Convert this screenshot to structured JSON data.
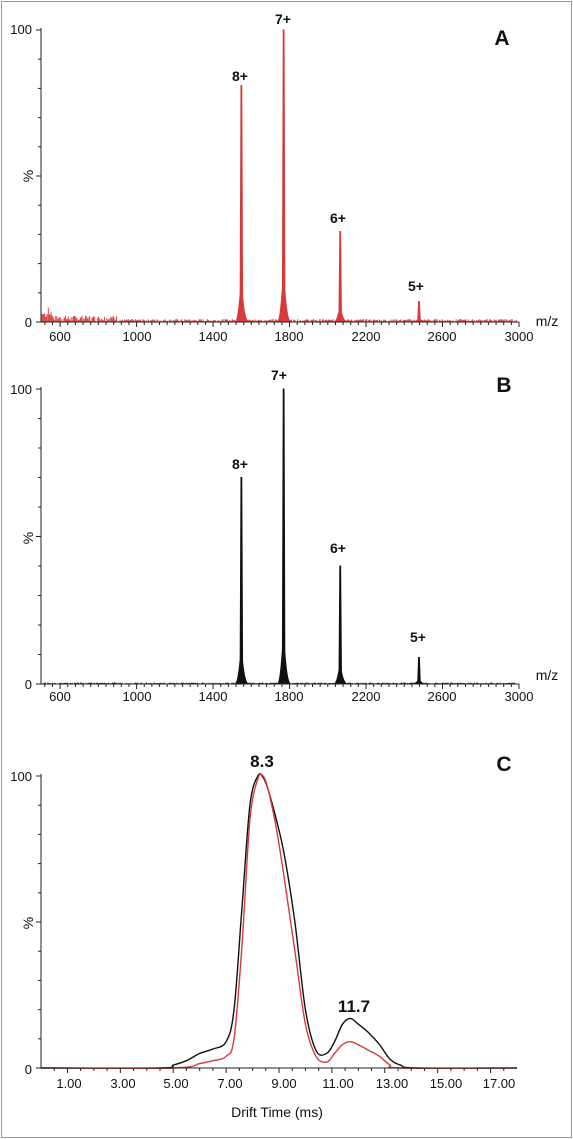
{
  "chart_data": [
    {
      "panel": "A",
      "type": "line",
      "color": "#d63a3a",
      "xlabel": "m/z",
      "ylabel": "%",
      "xlim": [
        500,
        3000
      ],
      "ylim": [
        0,
        100
      ],
      "x_ticks": [
        "600",
        "1000",
        "1400",
        "1800",
        "2200",
        "2600",
        "3000"
      ],
      "y_ticks": [
        "0",
        "100"
      ],
      "peaks": [
        {
          "x": 1548,
          "y": 81,
          "label": "8+"
        },
        {
          "x": 1769,
          "y": 100,
          "label": "7+"
        },
        {
          "x": 2065,
          "y": 31,
          "label": "6+"
        },
        {
          "x": 2477,
          "y": 7,
          "label": "5+"
        }
      ]
    },
    {
      "panel": "B",
      "type": "line",
      "color": "#111111",
      "xlabel": "m/z",
      "ylabel": "%",
      "xlim": [
        500,
        3000
      ],
      "ylim": [
        0,
        100
      ],
      "x_ticks": [
        "600",
        "1000",
        "1400",
        "1800",
        "2200",
        "2600",
        "3000"
      ],
      "y_ticks": [
        "0",
        "100"
      ],
      "peaks": [
        {
          "x": 1548,
          "y": 70,
          "label": "8+"
        },
        {
          "x": 1769,
          "y": 100,
          "label": "7+"
        },
        {
          "x": 2065,
          "y": 40,
          "label": "6+"
        },
        {
          "x": 2477,
          "y": 9,
          "label": "5+"
        }
      ]
    },
    {
      "panel": "C",
      "type": "line",
      "xlabel": "Drift Time (ms)",
      "ylabel": "%",
      "xlim": [
        0,
        18
      ],
      "ylim": [
        0,
        100
      ],
      "x_ticks": [
        "1.00",
        "3.00",
        "5.00",
        "7.00",
        "9.00",
        "11.00",
        "13.00",
        "15.00",
        "17.00"
      ],
      "y_ticks": [
        "0",
        "100"
      ],
      "annotations": [
        {
          "x": 8.3,
          "y": 100,
          "label": "8.3"
        },
        {
          "x": 11.7,
          "y": 17,
          "label": "11.7"
        }
      ],
      "series": [
        {
          "color": "#111111",
          "x": [
            0,
            4.5,
            5.0,
            5.5,
            6.0,
            6.5,
            7.0,
            7.3,
            7.6,
            7.9,
            8.2,
            8.4,
            8.6,
            8.9,
            9.2,
            9.6,
            10.0,
            10.4,
            10.8,
            11.1,
            11.4,
            11.7,
            12.0,
            12.4,
            12.8,
            13.2,
            13.6,
            14.2,
            18
          ],
          "y": [
            0,
            0,
            1,
            2.5,
            5,
            6.5,
            9,
            20,
            55,
            90,
            100,
            99.5,
            95,
            85,
            73,
            50,
            20,
            6,
            5,
            9,
            15,
            17,
            15,
            12,
            8,
            3,
            1,
            0,
            0
          ]
        },
        {
          "color": "#d63a3a",
          "x": [
            0,
            5.0,
            6.0,
            6.5,
            7.0,
            7.3,
            7.6,
            7.9,
            8.2,
            8.4,
            8.6,
            8.9,
            9.2,
            9.6,
            10.0,
            10.4,
            10.8,
            11.1,
            11.4,
            11.7,
            12.0,
            12.4,
            12.8,
            13.2,
            13.6,
            18
          ],
          "y": [
            0,
            0,
            1.5,
            2.5,
            4,
            10,
            42,
            85,
            99,
            100,
            95,
            82,
            65,
            40,
            15,
            4,
            2,
            5,
            8,
            9,
            8,
            6,
            4,
            1,
            0,
            0
          ]
        }
      ]
    }
  ]
}
